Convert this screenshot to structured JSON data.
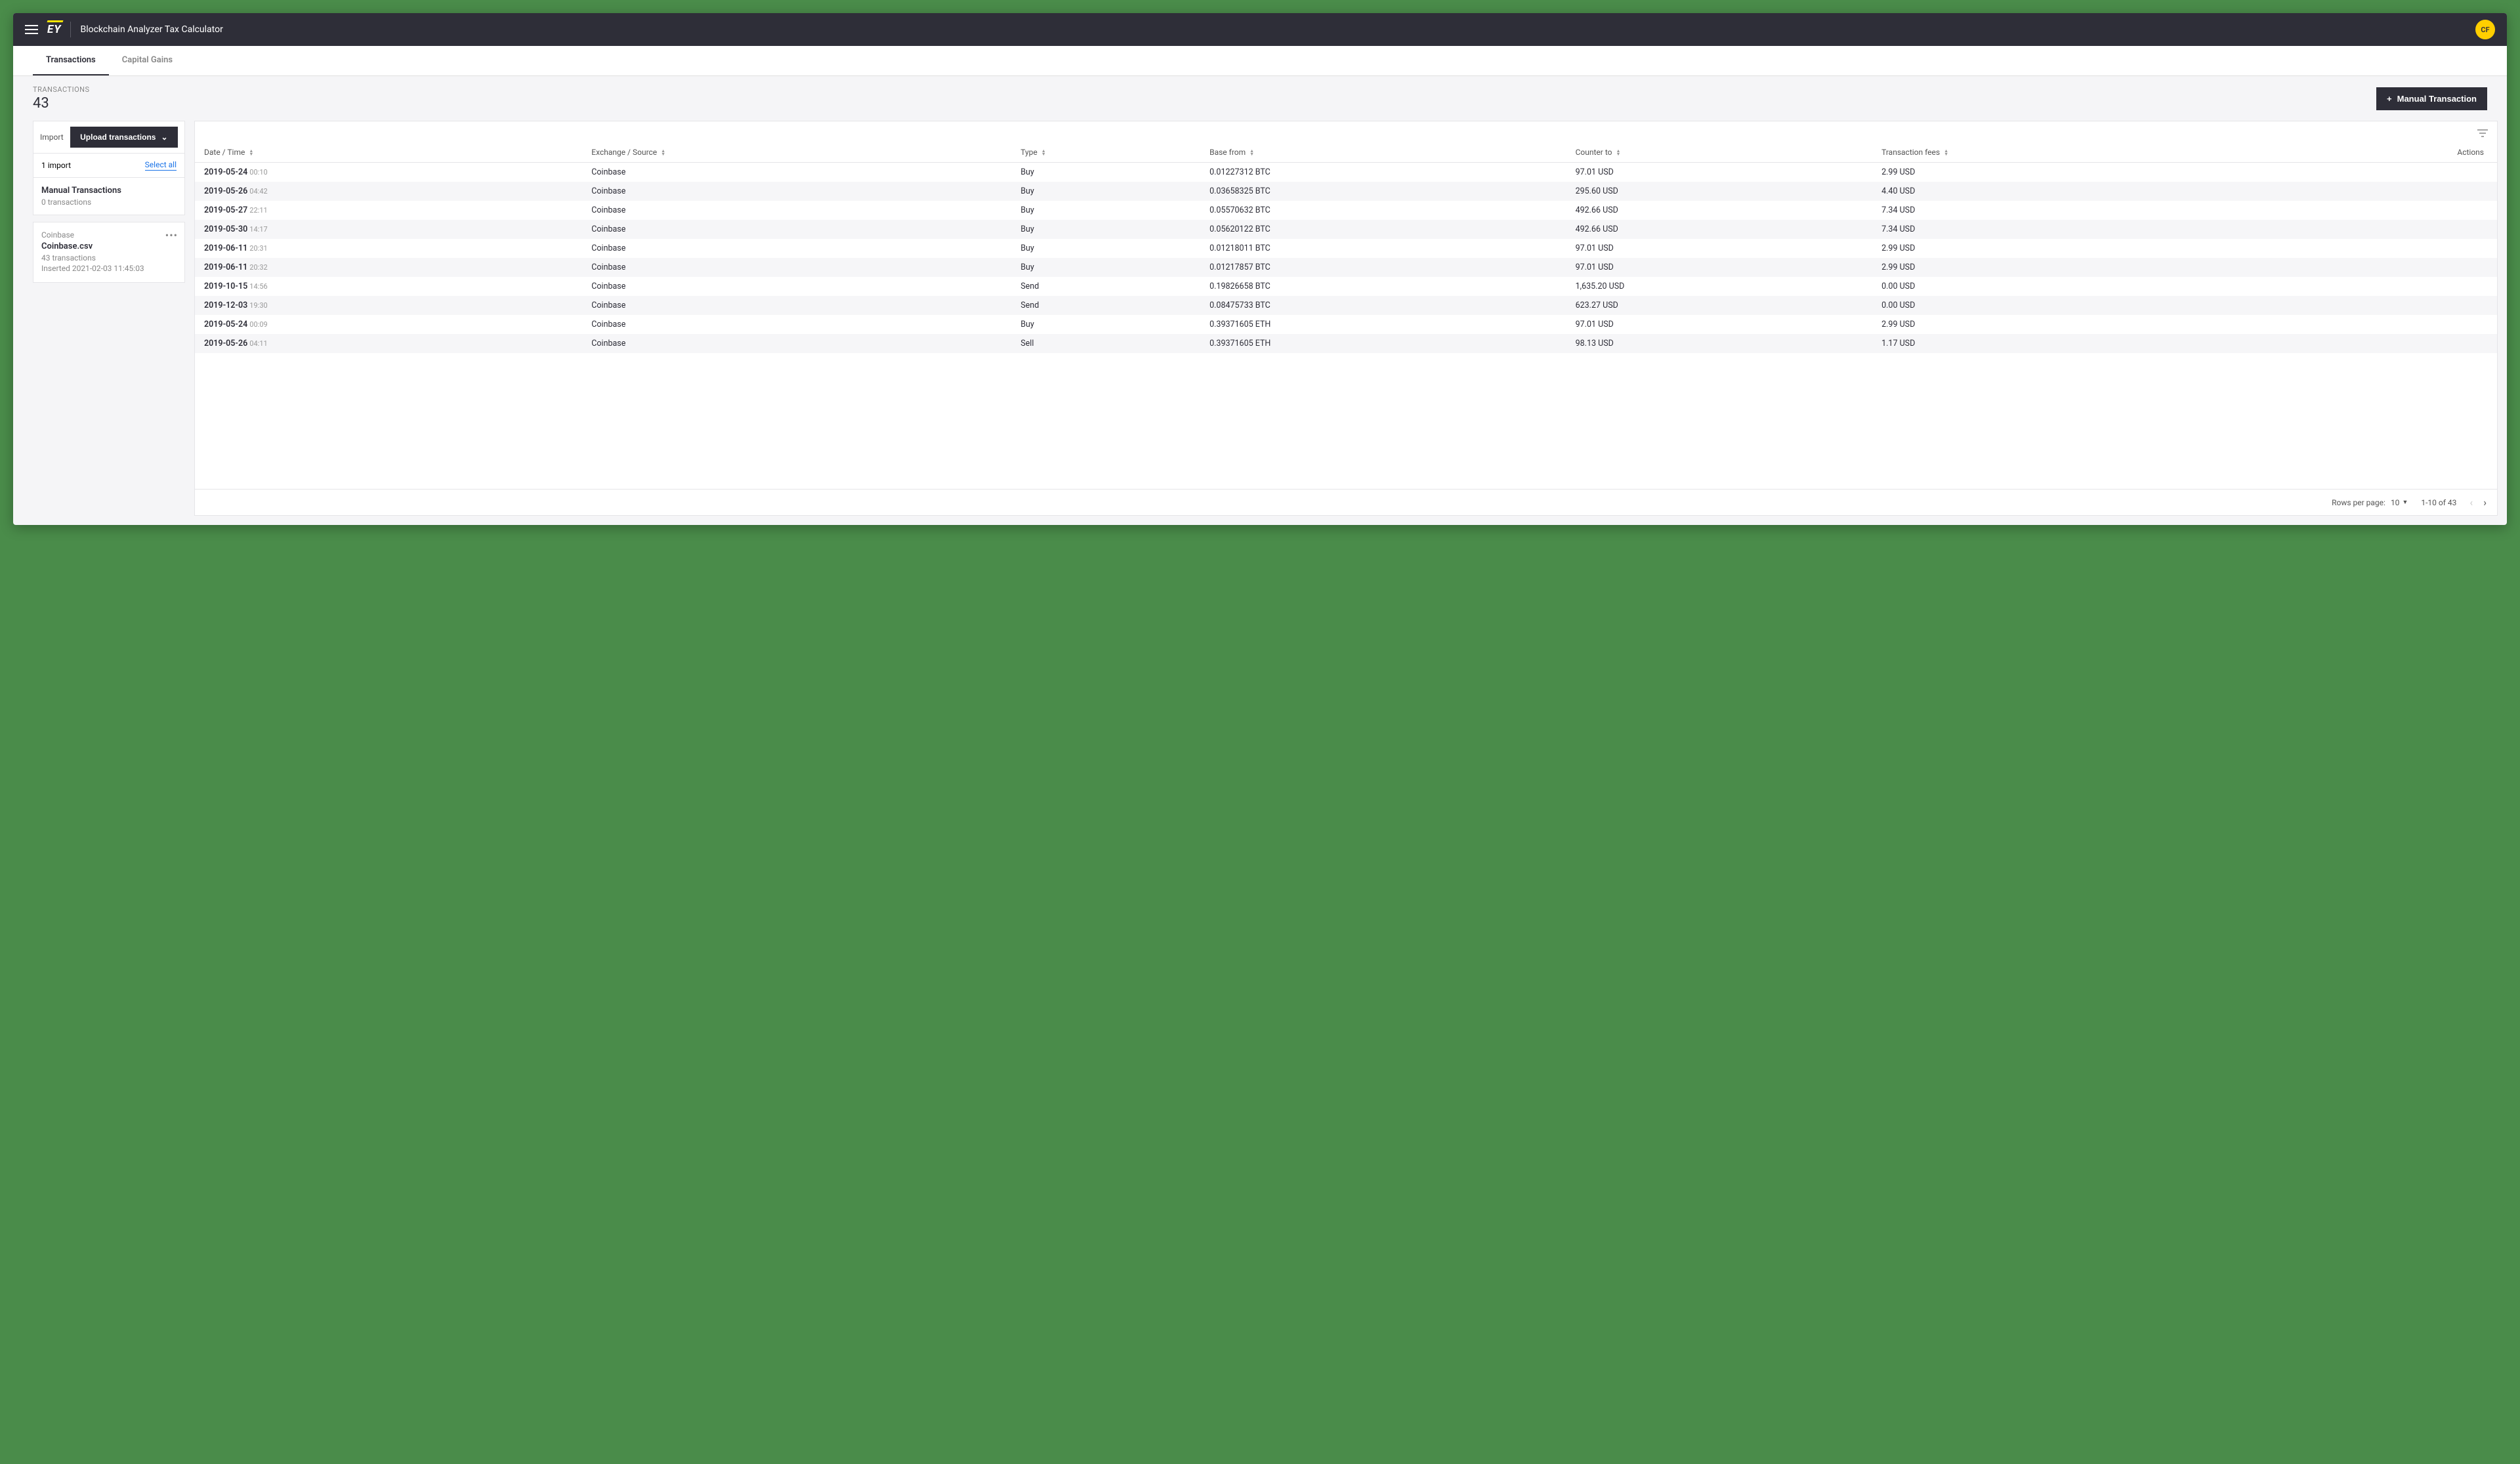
{
  "header": {
    "app_title": "Blockchain Analyzer Tax Calculator",
    "logo_text": "EY",
    "avatar_initials": "CF"
  },
  "tabs": [
    {
      "label": "Transactions",
      "active": true
    },
    {
      "label": "Capital Gains",
      "active": false
    }
  ],
  "summary": {
    "label": "TRANSACTIONS",
    "count": "43",
    "manual_btn": "Manual Transaction"
  },
  "sidebar": {
    "import_label": "Import",
    "upload_btn": "Upload transactions",
    "import_count": "1 import",
    "select_all": "Select all",
    "manual_title": "Manual Transactions",
    "manual_sub": "0 transactions",
    "source": {
      "name": "Coinbase",
      "file": "Coinbase.csv",
      "tx_count": "43 transactions",
      "inserted": "Inserted 2021-02-03 11:45:03"
    }
  },
  "table": {
    "columns": [
      "Date / Time",
      "Exchange / Source",
      "Type",
      "Base from",
      "Counter to",
      "Transaction fees",
      "Actions"
    ],
    "rows": [
      {
        "date": "2019-05-24",
        "time": "00:10",
        "exchange": "Coinbase",
        "type": "Buy",
        "base": "0.01227312 BTC",
        "counter": "97.01 USD",
        "fee": "2.99 USD"
      },
      {
        "date": "2019-05-26",
        "time": "04:42",
        "exchange": "Coinbase",
        "type": "Buy",
        "base": "0.03658325 BTC",
        "counter": "295.60 USD",
        "fee": "4.40 USD"
      },
      {
        "date": "2019-05-27",
        "time": "22:11",
        "exchange": "Coinbase",
        "type": "Buy",
        "base": "0.05570632 BTC",
        "counter": "492.66 USD",
        "fee": "7.34 USD"
      },
      {
        "date": "2019-05-30",
        "time": "14:17",
        "exchange": "Coinbase",
        "type": "Buy",
        "base": "0.05620122 BTC",
        "counter": "492.66 USD",
        "fee": "7.34 USD"
      },
      {
        "date": "2019-06-11",
        "time": "20:31",
        "exchange": "Coinbase",
        "type": "Buy",
        "base": "0.01218011 BTC",
        "counter": "97.01 USD",
        "fee": "2.99 USD"
      },
      {
        "date": "2019-06-11",
        "time": "20:32",
        "exchange": "Coinbase",
        "type": "Buy",
        "base": "0.01217857 BTC",
        "counter": "97.01 USD",
        "fee": "2.99 USD"
      },
      {
        "date": "2019-10-15",
        "time": "14:56",
        "exchange": "Coinbase",
        "type": "Send",
        "base": "0.19826658 BTC",
        "counter": "1,635.20 USD",
        "fee": "0.00 USD"
      },
      {
        "date": "2019-12-03",
        "time": "19:30",
        "exchange": "Coinbase",
        "type": "Send",
        "base": "0.08475733 BTC",
        "counter": "623.27 USD",
        "fee": "0.00 USD"
      },
      {
        "date": "2019-05-24",
        "time": "00:09",
        "exchange": "Coinbase",
        "type": "Buy",
        "base": "0.39371605 ETH",
        "counter": "97.01 USD",
        "fee": "2.99 USD"
      },
      {
        "date": "2019-05-26",
        "time": "04:11",
        "exchange": "Coinbase",
        "type": "Sell",
        "base": "0.39371605 ETH",
        "counter": "98.13 USD",
        "fee": "1.17 USD"
      }
    ]
  },
  "pagination": {
    "rows_per_page_label": "Rows per page:",
    "rows_per_page_value": "10",
    "range": "1-10 of 43"
  },
  "colors": {
    "topbar_bg": "#2e2e38",
    "accent_yellow": "#ffe600",
    "avatar_bg": "#ffcf00",
    "page_bg": "#f5f5f7",
    "outer_bg": "#4a8c4a",
    "link": "#1a73e8",
    "stripe": "#f6f6f8",
    "border": "#e5e5e8"
  }
}
